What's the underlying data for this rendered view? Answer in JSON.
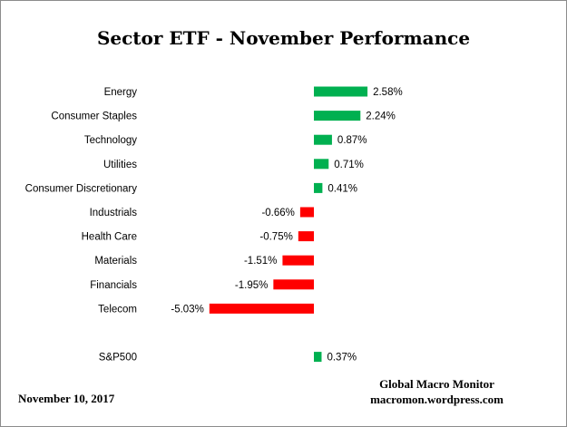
{
  "chart_data": {
    "type": "bar",
    "orientation": "horizontal",
    "title": "Sector ETF - November Performance",
    "categories": [
      "Energy",
      "Consumer Staples",
      "Technology",
      "Utilities",
      "Consumer Discretionary",
      "Industrials",
      "Health Care",
      "Materials",
      "Financials",
      "Telecom",
      "S&P500"
    ],
    "values": [
      2.58,
      2.24,
      0.87,
      0.71,
      0.41,
      -0.66,
      -0.75,
      -1.51,
      -1.95,
      -5.03,
      0.37
    ],
    "value_labels": [
      "2.58%",
      "2.24%",
      "0.87%",
      "0.71%",
      "0.41%",
      "-0.66%",
      "-0.75%",
      "-1.51%",
      "-1.95%",
      "-5.03%",
      "0.37%"
    ],
    "unit": "%",
    "colors": {
      "positive": "#00b050",
      "negative": "#ff0000"
    },
    "grid": false,
    "legend": "none"
  },
  "source": {
    "line1": "Global Macro Monitor",
    "line2": "macromon.wordpress.com"
  },
  "date": "November 10, 2017"
}
